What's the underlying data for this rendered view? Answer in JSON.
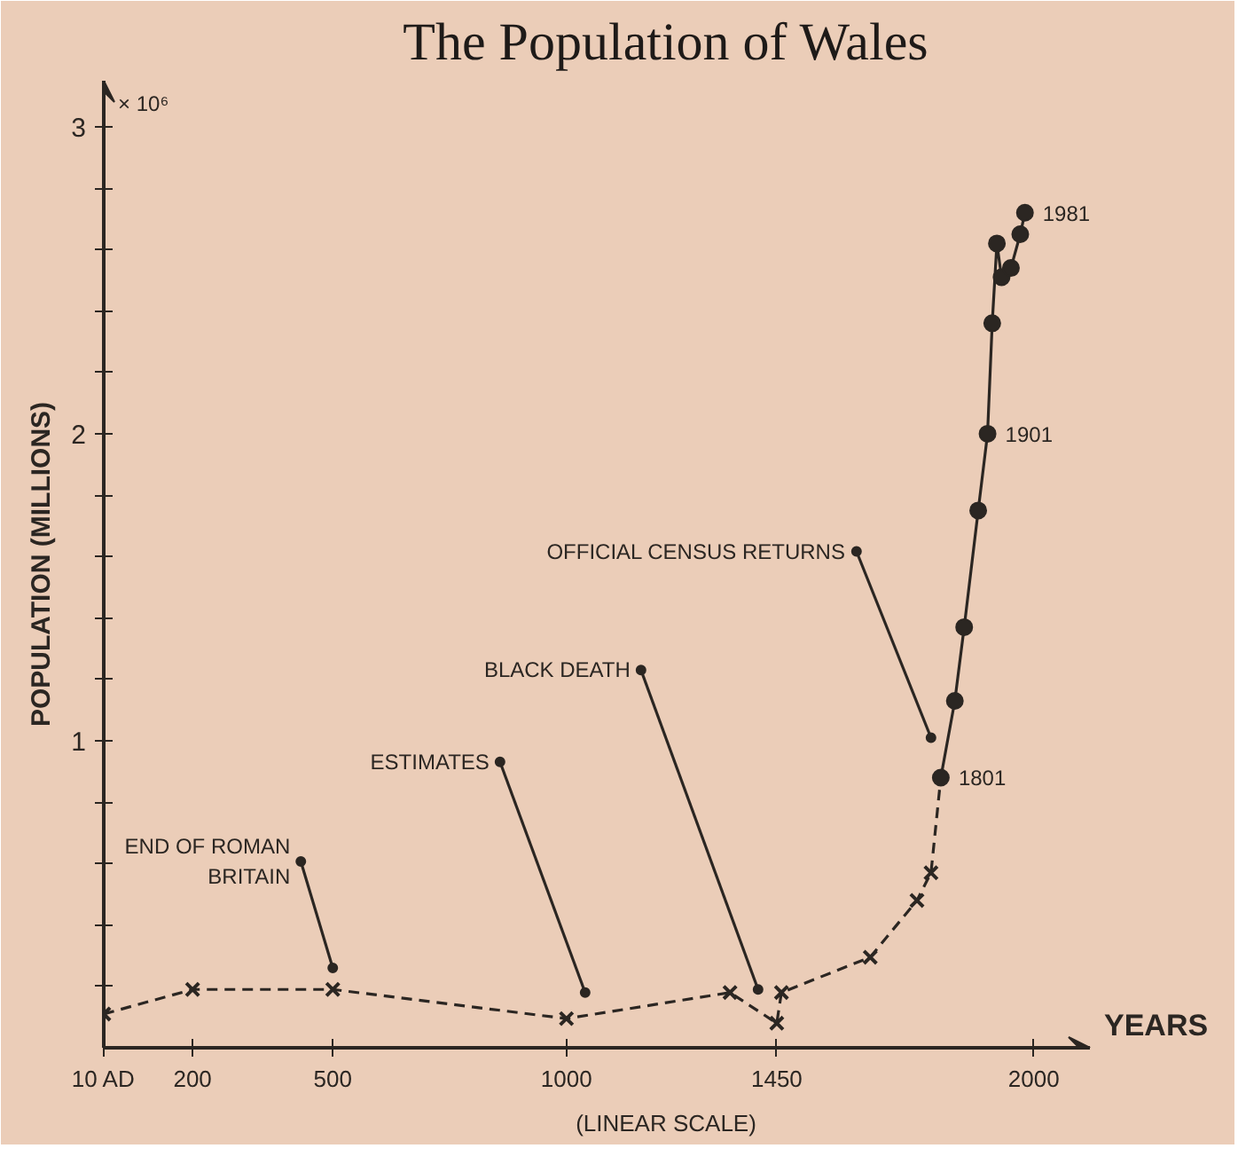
{
  "chart_data": {
    "type": "line",
    "title": "The Population of Wales",
    "xlabel": "YEARS",
    "ylabel": "POPULATION (MILLIONS)",
    "xlim": [
      10,
      2120
    ],
    "ylim": [
      0,
      3.15
    ],
    "xticks": [
      {
        "value": 10,
        "label": "10 AD"
      },
      200,
      500,
      1000,
      1450,
      2000
    ],
    "yticks": [
      {
        "value": 0.2,
        "label": null
      },
      {
        "value": 0.4,
        "label": null
      },
      {
        "value": 0.6,
        "label": null
      },
      {
        "value": 0.8,
        "label": null
      },
      1,
      {
        "value": 1.2,
        "label": null
      },
      {
        "value": 1.4,
        "label": null
      },
      {
        "value": 1.6,
        "label": null
      },
      {
        "value": 1.8,
        "label": null
      },
      2,
      {
        "value": 2.2,
        "label": null
      },
      {
        "value": 2.4,
        "label": null
      },
      {
        "value": 2.6,
        "label": null
      },
      {
        "value": 2.8,
        "label": null
      },
      3
    ],
    "series": [
      {
        "color": "#2b2622",
        "marker": "cross",
        "line_style": "dashed",
        "x": [
          10,
          200,
          500,
          1000,
          1350,
          1450,
          1460,
          1650,
          1750,
          1780,
          1801
        ],
        "values": [
          0.11,
          0.19,
          0.19,
          0.095,
          0.18,
          0.08,
          0.18,
          0.295,
          0.48,
          0.57,
          0.88
        ]
      },
      {
        "color": "#2b2622",
        "marker": "circle",
        "line_style": "solid",
        "x": [
          1801,
          1831,
          1851,
          1881,
          1901,
          1911,
          1921,
          1931,
          1951,
          1971,
          1981
        ],
        "values": [
          0.88,
          1.13,
          1.37,
          1.75,
          2.0,
          2.36,
          2.62,
          2.51,
          2.54,
          2.65,
          2.72
        ]
      }
    ],
    "annotations": [
      {
        "text": "END OF ROMAN\nBRITAIN",
        "x": 500,
        "y": 0.26
      },
      {
        "text": "ESTIMATES",
        "x": 1040,
        "y": 0.18
      },
      {
        "text": "BLACK DEATH",
        "x": 1410,
        "y": 0.19
      },
      {
        "text": "OFFICIAL CENSUS RETURNS",
        "x": 1780,
        "y": 1.01
      },
      {
        "text": "1801",
        "x": 1801,
        "y": 0.88
      },
      {
        "text": "1901",
        "x": 1901,
        "y": 2.0
      },
      {
        "text": "1981",
        "x": 1981,
        "y": 2.72
      },
      "× 10⁶",
      "(LINEAR SCALE)"
    ]
  }
}
